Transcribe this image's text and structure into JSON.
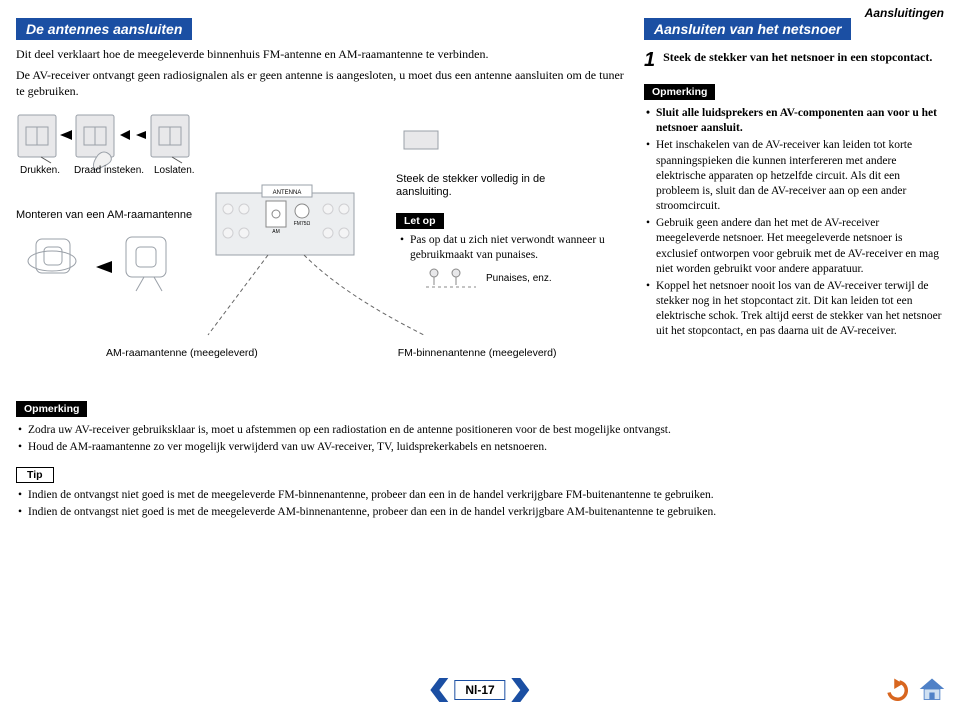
{
  "page_corner": "Aansluitingen",
  "left": {
    "heading": "De antennes aansluiten",
    "intro1": "Dit deel verklaart hoe de meegeleverde binnenhuis FM-antenne en AM-raamantenne te verbinden.",
    "intro2": "De AV-receiver ontvangt geen radiosignalen als er geen antenne is aangesloten, u moet dus een antenne aansluiten om de tuner te gebruiken.",
    "captions": {
      "c1": "Drukken.",
      "c2": "Draad insteken.",
      "c3": "Loslaten."
    },
    "mount": "Monteren van een AM-raamantenne",
    "plug": "Steek de stekker volledig in de aansluiting.",
    "warn_label": "Let op",
    "warn_text": "Pas op dat u zich niet verwondt wanneer u gebruikmaakt van punaises.",
    "punaises": "Punaises, enz.",
    "ant_left": "AM-raamantenne (meegeleverd)",
    "ant_right": "FM-binnenantenne (meegeleverd)",
    "mini_labels": {
      "antenna": "ANTENNA",
      "am": "AM",
      "fm": "FM75Ω"
    }
  },
  "right": {
    "heading": "Aansluiten van het netsnoer",
    "step_num": "1",
    "step_text": "Steek de stekker van het netsnoer in een stopcontact.",
    "note_label": "Opmerking",
    "notes": [
      {
        "bold": true,
        "text": "Sluit alle luidsprekers en AV-componenten aan voor u het netsnoer aansluit."
      },
      {
        "bold": false,
        "text": "Het inschakelen van de AV-receiver kan leiden tot korte spanningspieken die kunnen interfereren met andere elektrische apparaten op hetzelfde circuit. Als dit een probleem is, sluit dan de AV-receiver aan op een ander stroomcircuit."
      },
      {
        "bold": false,
        "text": "Gebruik geen andere dan het met de AV-receiver meegeleverde netsnoer. Het meegeleverde netsnoer is exclusief ontworpen voor gebruik met de AV-receiver en mag niet worden gebruikt voor andere apparatuur."
      },
      {
        "bold": false,
        "text": "Koppel het netsnoer nooit los van de AV-receiver terwijl de stekker nog in het stopcontact zit. Dit kan leiden tot een elektrische schok. Trek altijd eerst de stekker van het netsnoer uit het stopcontact, en pas daarna uit de AV-receiver."
      }
    ]
  },
  "bottom": {
    "note_label": "Opmerking",
    "notes": [
      "Zodra uw AV-receiver gebruiksklaar is, moet u afstemmen op een radiostation en de antenne positioneren voor de best mogelijke ontvangst.",
      "Houd de AM-raamantenne zo ver mogelijk verwijderd van uw AV-receiver, TV, luidsprekerkabels en netsnoeren."
    ],
    "tip_label": "Tip",
    "tips": [
      "Indien de ontvangst niet goed is met de meegeleverde FM-binnenantenne, probeer dan een in de handel verkrijgbare FM-buitenantenne te gebruiken.",
      "Indien de ontvangst niet goed is met de meegeleverde AM-binnenantenne, probeer dan een in de handel verkrijgbare AM-buitenantenne te gebruiken."
    ]
  },
  "footer": {
    "page": "Nl-17"
  },
  "colors": {
    "brand": "#1b4fa3",
    "diagram_fill": "#e8e8ea",
    "diagram_stroke": "#9aa0a8",
    "back_arrow": "#d8661f",
    "home_roof": "#4f81c7",
    "home_body": "#cfe0f2"
  }
}
